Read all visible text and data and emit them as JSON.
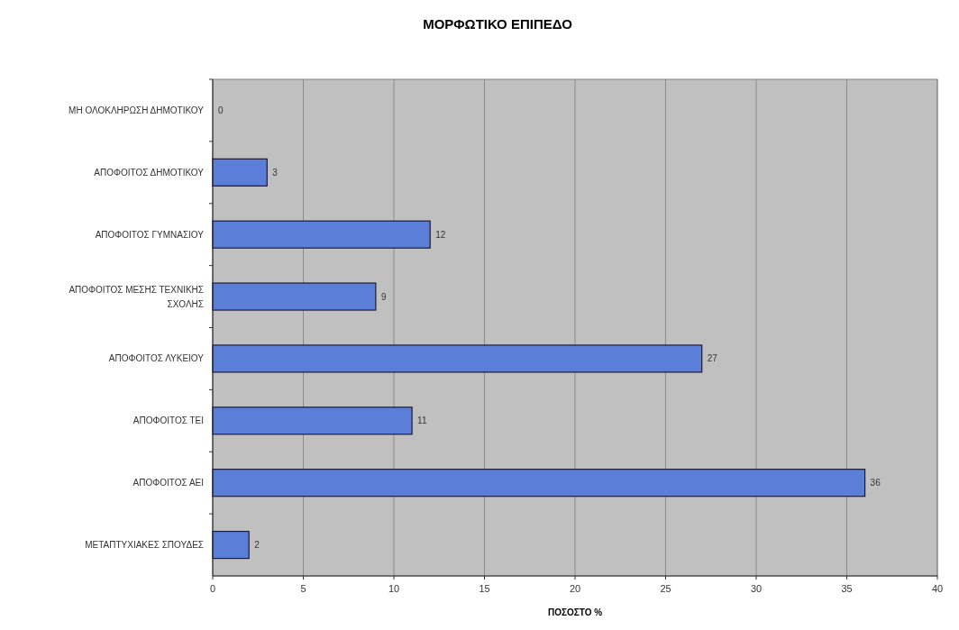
{
  "chart_data": {
    "type": "bar",
    "orientation": "horizontal",
    "title": "ΜΟΡΦΩΤΙΚΟ ΕΠΙΠΕΔΟ",
    "xlabel": "ΠΟΣΟΣΤΟ %",
    "categories": [
      "ΜΗ ΟΛΟΚΛΗΡΩΣΗ ΔΗΜΟΤΙΚΟΥ",
      "ΑΠΟΦΟΙΤΟΣ ΔΗΜΟΤΙΚΟΥ",
      "ΑΠΟΦΟΙΤΟΣ ΓΥΜΝΑΣΙΟΥ",
      "ΑΠΟΦΟΙΤΟΣ ΜΕΣΗΣ ΤΕΧΝΙΚΗΣ ΣΧΟΛΗΣ",
      "ΑΠΟΦΟΙΤΟΣ ΛΥΚΕΙΟΥ",
      "ΑΠΟΦΟΙΤΟΣ ΤΕΙ",
      "ΑΠΟΦΟΙΤΟΣ ΑΕΙ",
      "ΜΕΤΑΠΤΥΧΙΑΚΕΣ ΣΠΟΥΔΕΣ"
    ],
    "values": [
      0,
      3,
      12,
      9,
      27,
      11,
      36,
      2
    ],
    "color": "#5b7fd9",
    "xlim": [
      0,
      40
    ],
    "xticks": [
      0,
      5,
      10,
      15,
      20,
      25,
      30,
      35,
      40
    ],
    "grid": "x",
    "data_labels": true
  }
}
